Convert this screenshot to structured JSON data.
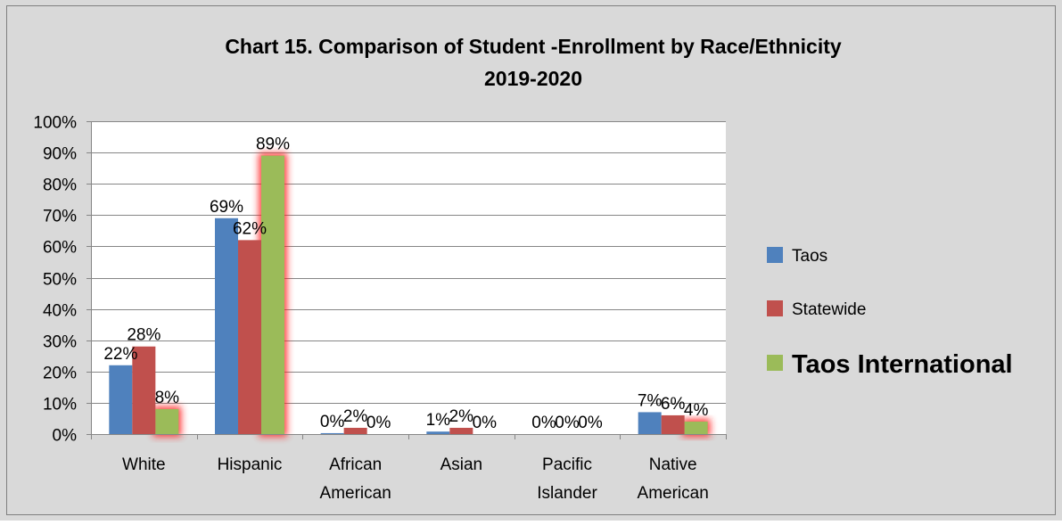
{
  "chart_data": {
    "type": "bar",
    "title": "Chart 15. Comparison of Student -Enrollment by Race/Ethnicity",
    "subtitle": "2019-2020",
    "categories": [
      [
        "White"
      ],
      [
        "Hispanic"
      ],
      [
        "African",
        "American"
      ],
      [
        "Asian"
      ],
      [
        "Pacific",
        "Islander"
      ],
      [
        "Native",
        "American"
      ]
    ],
    "series": [
      {
        "name": "Taos",
        "color": "#4f81bd",
        "values": [
          22,
          69,
          0.3,
          0.8,
          0,
          7
        ],
        "labels": [
          "22%",
          "69%",
          "0%",
          "1%",
          "0%",
          "7%"
        ],
        "highlight": false
      },
      {
        "name": "Statewide",
        "color": "#c0504d",
        "values": [
          28,
          62,
          2,
          2,
          0,
          6
        ],
        "labels": [
          "28%",
          "62%",
          "2%",
          "2%",
          "0%",
          "6%"
        ],
        "highlight": false
      },
      {
        "name": "Taos International",
        "color": "#9bbb59",
        "values": [
          8,
          89,
          0,
          0,
          0,
          4
        ],
        "labels": [
          "8%",
          "89%",
          "0%",
          "0%",
          "0%",
          "4%"
        ],
        "highlight": true
      }
    ],
    "y_ticks": [
      "0%",
      "10%",
      "20%",
      "30%",
      "40%",
      "50%",
      "60%",
      "70%",
      "80%",
      "90%",
      "100%"
    ],
    "ylim": [
      0,
      100
    ],
    "grid": true,
    "legend": "right",
    "background": "#d9d9d9",
    "plot_background": "#ffffff"
  }
}
